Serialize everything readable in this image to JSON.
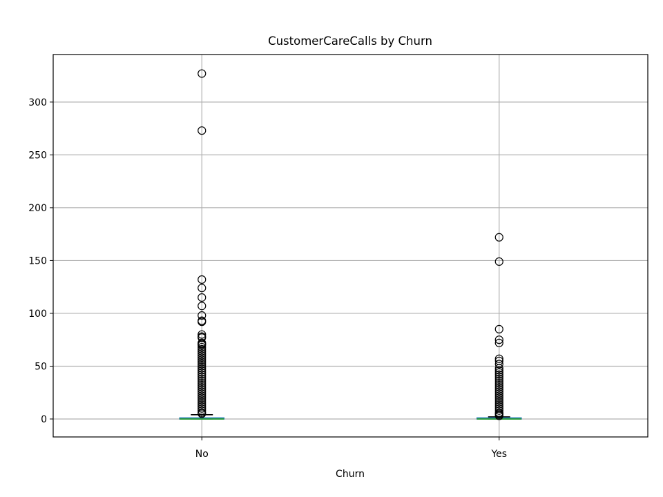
{
  "chart_data": {
    "type": "box",
    "title": "CustomerCareCalls by Churn",
    "xlabel": "Churn",
    "ylabel": "",
    "ylim": [
      -17,
      345
    ],
    "yticks": [
      0,
      50,
      100,
      150,
      200,
      250,
      300
    ],
    "grid": true,
    "categories": [
      "No",
      "Yes"
    ],
    "boxes": [
      {
        "category": "No",
        "q1": 0,
        "median": 0,
        "q3": 1,
        "whisker_low": 0,
        "whisker_high": 4,
        "outliers": [
          327,
          273,
          132,
          124,
          115,
          107,
          98,
          93,
          92,
          80,
          78,
          77,
          72,
          71,
          70,
          68,
          66,
          64,
          62,
          60,
          58,
          56,
          54,
          52,
          50,
          48,
          46,
          44,
          42,
          40,
          38,
          36,
          34,
          32,
          30,
          28,
          26,
          24,
          22,
          20,
          18,
          16,
          14,
          12,
          10,
          8,
          6,
          5
        ]
      },
      {
        "category": "Yes",
        "q1": 0,
        "median": 0,
        "q3": 1,
        "whisker_low": 0,
        "whisker_high": 2,
        "outliers": [
          172,
          149,
          85,
          75,
          72,
          57,
          55,
          52,
          48,
          46,
          44,
          42,
          40,
          38,
          36,
          34,
          32,
          30,
          28,
          26,
          24,
          22,
          20,
          18,
          16,
          14,
          12,
          10,
          8,
          6,
          5,
          4,
          3
        ]
      }
    ]
  }
}
